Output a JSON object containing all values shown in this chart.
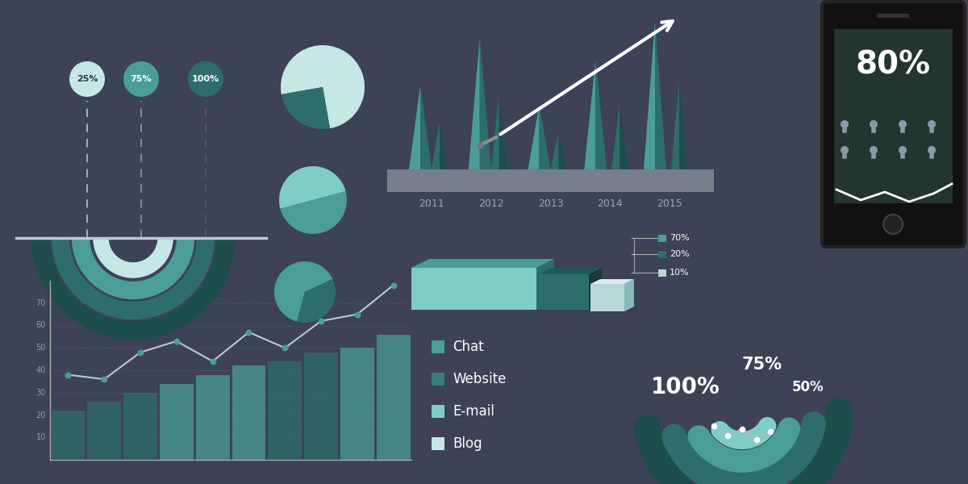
{
  "bg_color": "#3d4255",
  "teal_light": "#7ecec4",
  "teal_mid": "#4a9e96",
  "teal_dark": "#2e6e6a",
  "teal_darker": "#1e4e4a",
  "teal_pale": "#c5e8e4",
  "gray_base": "#6a6f7e",
  "white": "#ffffff",
  "gauge_pcts": [
    "25%",
    "75%",
    "100%"
  ],
  "gauge_colors": [
    "#c5e8e4",
    "#5cbdb4",
    "#2e7070"
  ],
  "years": [
    "2011",
    "2012",
    "2013",
    "2014",
    "2015"
  ],
  "legend_items": [
    "Chat",
    "Website",
    "E-mail",
    "Blog"
  ],
  "legend_colors": [
    "#4a9e96",
    "#3a7e76",
    "#7ecec4",
    "#c5e8e4"
  ],
  "phone_pct": "80%"
}
